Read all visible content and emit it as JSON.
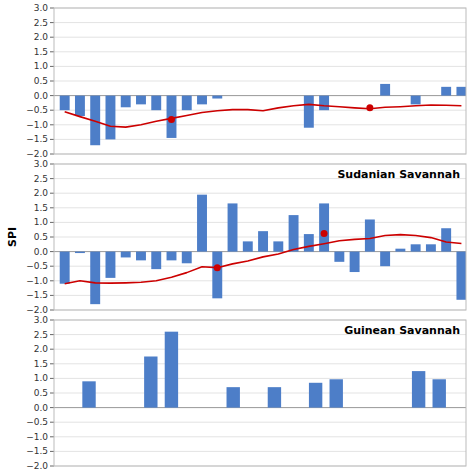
{
  "chart_data": [
    {
      "type": "bar",
      "categories": [
        null,
        null,
        null,
        null,
        null,
        null,
        null,
        null,
        null,
        null,
        null,
        null,
        null,
        null,
        null,
        null,
        null,
        null,
        null,
        null,
        null,
        null,
        null,
        null,
        null,
        null,
        null
      ],
      "xlim": [
        -0.7,
        26.3
      ],
      "ylim": [
        -2,
        3
      ],
      "yticks": [
        {
          "value": -2,
          "label": "−2.0"
        },
        {
          "value": -1.5,
          "label": "−1.5"
        },
        {
          "value": -1,
          "label": "−1.0"
        },
        {
          "value": -0.5,
          "label": "−0.5"
        },
        {
          "value": 0,
          "label": "0.0"
        },
        0.5,
        {
          "value": 1,
          "label": "1.0"
        },
        1.5,
        {
          "value": 2,
          "label": "2.0"
        },
        2.5,
        {
          "value": 3,
          "label": "3.0"
        }
      ],
      "grid": true,
      "tick_labels": "y",
      "series": [
        {
          "type": "bar",
          "color": "#4D7EC8",
          "values": [
            -0.5,
            -0.7,
            -1.7,
            -1.5,
            -0.4,
            -0.3,
            -0.5,
            -1.45,
            -0.5,
            -0.3,
            -0.1,
            0.0,
            0.0,
            0.0,
            0.0,
            0.0,
            -1.1,
            -0.5,
            0.0,
            0.0,
            0.0,
            0.4,
            0.0,
            -0.3,
            0.0,
            0.3,
            0.3
          ]
        },
        {
          "type": "line",
          "color": "#CC0000",
          "x": [
            0,
            1,
            2,
            3,
            4,
            5,
            6,
            7,
            8,
            9,
            10,
            11,
            12,
            13,
            14,
            15,
            16,
            17,
            18,
            19,
            20,
            21,
            22,
            23,
            24,
            25,
            26
          ],
          "values": [
            -0.55,
            -0.72,
            -0.88,
            -1.05,
            -1.08,
            -1.0,
            -0.88,
            -0.78,
            -0.68,
            -0.58,
            -0.52,
            -0.48,
            -0.48,
            -0.52,
            -0.42,
            -0.35,
            -0.3,
            -0.35,
            -0.38,
            -0.42,
            -0.45,
            -0.4,
            -0.38,
            -0.35,
            -0.32,
            -0.33,
            -0.35
          ]
        },
        {
          "type": "scatter",
          "color": "#CC0000",
          "marker": "circle",
          "x": [
            7,
            20
          ],
          "values": [
            -0.82,
            -0.42
          ]
        }
      ]
    },
    {
      "type": "bar",
      "title": "Sudanian Savannah",
      "y_label": "SPI",
      "categories": [
        null,
        null,
        null,
        null,
        null,
        null,
        null,
        null,
        null,
        null,
        null,
        null,
        null,
        null,
        null,
        null,
        null,
        null,
        null,
        null,
        null,
        null,
        null,
        null,
        null,
        null,
        null
      ],
      "xlim": [
        -0.7,
        26.3
      ],
      "ylim": [
        -2,
        3
      ],
      "yticks": [
        {
          "value": -2,
          "label": "−2.0"
        },
        {
          "value": -1.5,
          "label": "−1.5"
        },
        {
          "value": -1,
          "label": "−1.0"
        },
        {
          "value": -0.5,
          "label": "−0.5"
        },
        {
          "value": 0,
          "label": "0.0"
        },
        0.5,
        {
          "value": 1,
          "label": "1.0"
        },
        1.5,
        {
          "value": 2,
          "label": "2.0"
        },
        2.5,
        {
          "value": 3,
          "label": "3.0"
        }
      ],
      "grid": true,
      "tick_labels": "y",
      "series": [
        {
          "type": "bar",
          "color": "#4D7EC8",
          "values": [
            -1.1,
            -0.05,
            -1.8,
            -0.9,
            -0.2,
            -0.3,
            -0.6,
            -0.3,
            -0.4,
            1.95,
            -1.6,
            1.65,
            0.35,
            0.7,
            0.35,
            1.25,
            0.6,
            1.65,
            -0.35,
            -0.7,
            1.1,
            -0.5,
            0.1,
            0.25,
            0.25,
            0.8,
            -1.65
          ]
        },
        {
          "type": "line",
          "color": "#CC0000",
          "x": [
            0,
            1,
            2,
            3,
            4,
            5,
            6,
            7,
            8,
            9,
            10,
            11,
            12,
            13,
            14,
            15,
            16,
            17,
            18,
            19,
            20,
            21,
            22,
            23,
            24,
            25,
            26
          ],
          "values": [
            -1.1,
            -1.0,
            -1.07,
            -1.08,
            -1.07,
            -1.05,
            -1.0,
            -0.88,
            -0.72,
            -0.52,
            -0.55,
            -0.42,
            -0.32,
            -0.18,
            -0.08,
            0.07,
            0.18,
            0.27,
            0.37,
            0.42,
            0.45,
            0.55,
            0.58,
            0.55,
            0.48,
            0.33,
            0.28
          ]
        },
        {
          "type": "scatter",
          "color": "#CC0000",
          "marker": "circle",
          "x": [
            10,
            17
          ],
          "values": [
            -0.55,
            0.62
          ]
        }
      ]
    },
    {
      "type": "bar",
      "title": "Guinean Savannah",
      "categories": [
        null,
        null,
        null,
        null,
        null,
        null,
        null,
        null,
        null,
        null,
        null,
        null,
        null,
        null,
        null,
        null,
        null,
        null,
        null,
        null
      ],
      "xlim": [
        -0.7,
        19.3
      ],
      "ylim": [
        -2,
        3
      ],
      "yticks": [
        {
          "value": -2,
          "label": "−2.0"
        },
        {
          "value": -1.5,
          "label": "−1.5"
        },
        {
          "value": -1,
          "label": "−1.0"
        },
        {
          "value": -0.5,
          "label": "−0.5"
        },
        {
          "value": 0,
          "label": "0.0"
        },
        0.5,
        {
          "value": 1,
          "label": "1.0"
        },
        1.5,
        {
          "value": 2,
          "label": "2.0"
        },
        2.5,
        {
          "value": 3,
          "label": "3.0"
        }
      ],
      "grid": true,
      "tick_labels": "y",
      "series": [
        {
          "type": "bar",
          "color": "#4D7EC8",
          "values": [
            0.0,
            0.9,
            0.0,
            0.0,
            1.75,
            2.6,
            0.0,
            0.0,
            0.7,
            0.0,
            0.7,
            0.0,
            0.85,
            0.97,
            0.0,
            0.0,
            0.0,
            1.25,
            0.97,
            0.0
          ]
        }
      ]
    }
  ]
}
